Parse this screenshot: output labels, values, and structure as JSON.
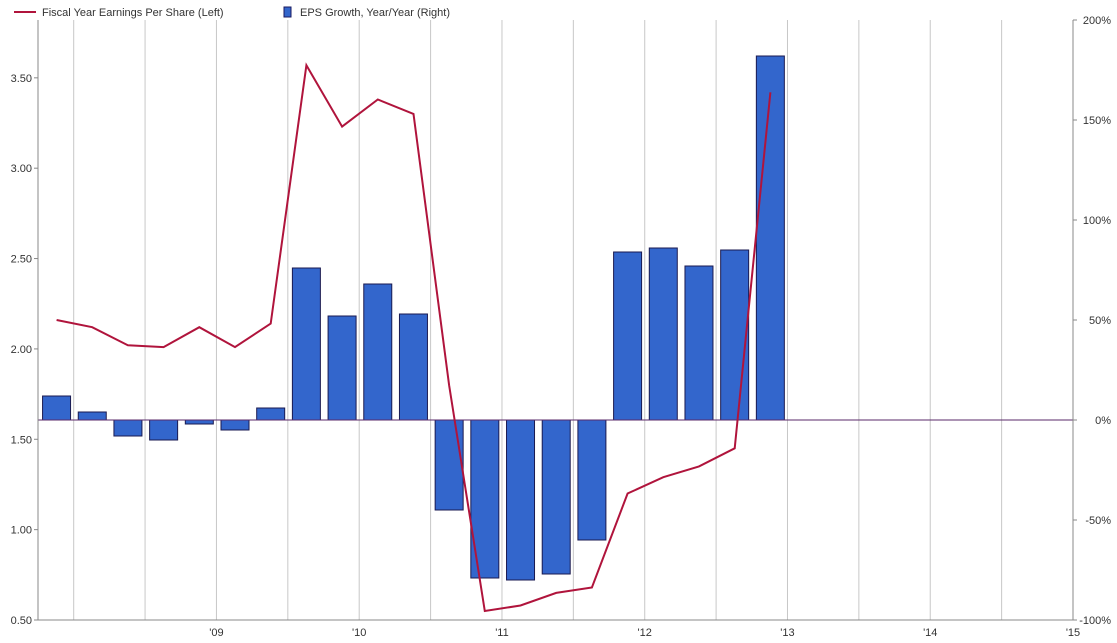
{
  "chart_data": {
    "type": "bar+line",
    "legend": {
      "placement": "top-left",
      "items": [
        {
          "label": "Fiscal Year Earnings Per Share (Left)",
          "kind": "line",
          "color": "#b0143c"
        },
        {
          "label": "EPS Growth, Year/Year (Right)",
          "kind": "bar",
          "color": "#3366cc"
        }
      ]
    },
    "x_axis": {
      "ticks": [
        "'09",
        "'10",
        "'11",
        "'12",
        "'13",
        "'14",
        "'15"
      ],
      "range": [
        2008.25,
        2015.5
      ],
      "grid": true
    },
    "y_left": {
      "ticks": [
        "0.50",
        "1.00",
        "1.50",
        "2.00",
        "2.50",
        "3.00",
        "3.50"
      ],
      "range": [
        0.5,
        3.82
      ]
    },
    "y_right": {
      "ticks": [
        "-100%",
        "-50%",
        "0%",
        "50%",
        "100%",
        "150%",
        "200%"
      ],
      "range": [
        -100,
        200
      ]
    },
    "series": [
      {
        "name": "Fiscal Year Earnings Per Share (Left)",
        "type": "line",
        "axis": "left",
        "color": "#b0143c",
        "x": [
          2008.38,
          2008.63,
          2008.88,
          2009.13,
          2009.38,
          2009.63,
          2009.88,
          2010.13,
          2010.38,
          2010.63,
          2010.88,
          2011.13,
          2011.38,
          2011.63,
          2011.88,
          2012.13,
          2012.38,
          2012.63,
          2012.88,
          2013.13,
          2013.38
        ],
        "values": [
          2.16,
          2.12,
          2.02,
          2.01,
          2.12,
          2.01,
          2.14,
          3.57,
          3.23,
          3.38,
          3.3,
          1.8,
          0.55,
          0.58,
          0.65,
          0.68,
          1.2,
          1.29,
          1.35,
          1.45,
          3.42
        ]
      },
      {
        "name": "EPS Growth, Year/Year (Right)",
        "type": "bar",
        "axis": "right",
        "color": "#3366cc",
        "x": [
          2008.38,
          2008.63,
          2008.88,
          2009.13,
          2009.38,
          2009.63,
          2009.88,
          2010.13,
          2010.38,
          2010.63,
          2010.88,
          2011.13,
          2011.38,
          2011.63,
          2011.88,
          2012.13,
          2012.38,
          2012.63,
          2012.88,
          2013.13,
          2013.38
        ],
        "values": [
          12,
          4,
          -8,
          -10,
          -2,
          -5,
          6,
          76,
          52,
          68,
          53,
          -45,
          -79,
          -80,
          -77,
          -60,
          84,
          86,
          77,
          85,
          182
        ]
      }
    ]
  }
}
